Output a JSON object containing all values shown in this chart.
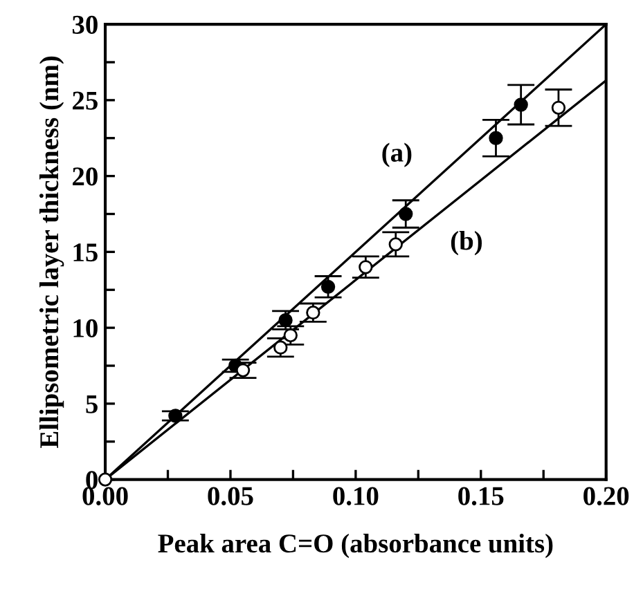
{
  "chart_data": {
    "type": "scatter",
    "xlabel": "Peak area C=O (absorbance units)",
    "ylabel": "Ellipsometric layer thickness (nm)",
    "xlim": [
      0,
      0.2
    ],
    "ylim": [
      0,
      30
    ],
    "xticks": [
      {
        "value": 0,
        "label": "0.00"
      },
      {
        "value": 0.025,
        "label": null
      },
      {
        "value": 0.05,
        "label": "0.05"
      },
      {
        "value": 0.075,
        "label": null
      },
      {
        "value": 0.1,
        "label": "0.10"
      },
      {
        "value": 0.125,
        "label": null
      },
      {
        "value": 0.15,
        "label": "0.15"
      },
      {
        "value": 0.175,
        "label": null
      },
      {
        "value": 0.2,
        "label": "0.20"
      }
    ],
    "yticks": [
      0,
      {
        "value": 2.5,
        "label": null
      },
      5,
      {
        "value": 7.5,
        "label": null
      },
      10,
      {
        "value": 12.5,
        "label": null
      },
      15,
      {
        "value": 17.5,
        "label": null
      },
      20,
      {
        "value": 22.5,
        "label": null
      },
      25,
      {
        "value": 27.5,
        "label": null
      },
      30
    ],
    "grid": false,
    "legend": false,
    "series": [
      {
        "marker": "circle",
        "color": "#000000",
        "x": [
          0.028,
          0.052,
          0.072,
          0.089,
          0.12,
          0.156,
          0.166
        ],
        "values": [
          4.2,
          7.5,
          10.5,
          12.7,
          17.5,
          22.5,
          24.7
        ],
        "errors": [
          0.3,
          0.4,
          0.6,
          0.7,
          0.9,
          1.2,
          1.3
        ]
      },
      {
        "marker": "circle",
        "color": "#ffffff",
        "x": [
          0.0,
          0.055,
          0.07,
          0.074,
          0.083,
          0.104,
          0.116,
          0.181
        ],
        "values": [
          0.0,
          7.2,
          8.7,
          9.5,
          11.0,
          14.0,
          15.5,
          24.5
        ],
        "errors": [
          null,
          0.5,
          0.6,
          0.6,
          0.6,
          0.7,
          0.8,
          1.2
        ]
      },
      {
        "type": "line",
        "name": "(a)",
        "color": "#000000",
        "x": [
          0,
          0.2
        ],
        "values": [
          0,
          30.0
        ]
      },
      {
        "type": "line",
        "name": "(b)",
        "color": "#000000",
        "x": [
          0,
          0.2
        ],
        "values": [
          0,
          26.3
        ]
      }
    ]
  }
}
